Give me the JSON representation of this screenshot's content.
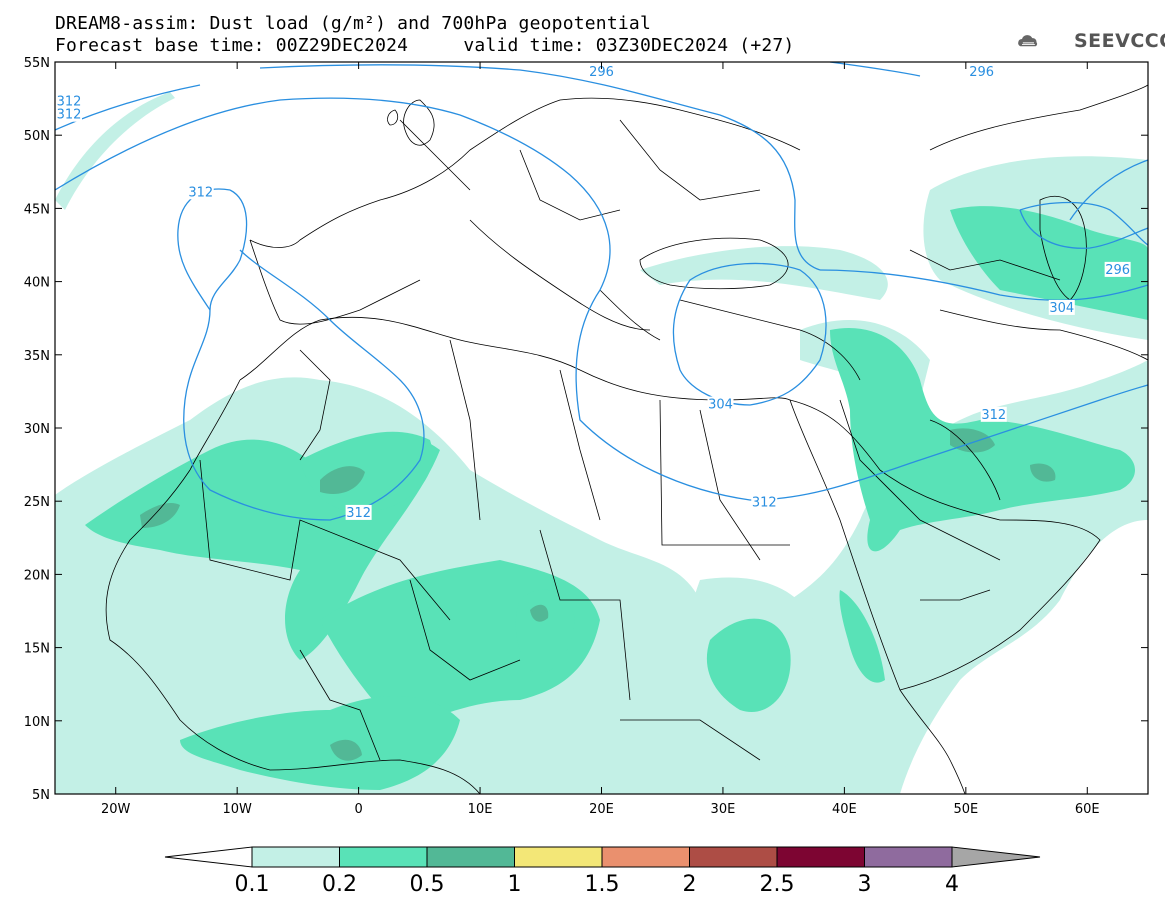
{
  "title": {
    "line1": "DREAM8-assim: Dust load (g/m²) and 700hPa geopotential",
    "line2": "Forecast base time: 00Z29DEC2024     valid time: 03Z30DEC2024 (+27)"
  },
  "logo": {
    "text": "SEEVCCC",
    "icon": "cloud-logo-icon"
  },
  "map": {
    "lon_range": [
      -25,
      65
    ],
    "lat_range": [
      5,
      55
    ],
    "lon_ticks": [
      {
        "v": -20,
        "label": "20W"
      },
      {
        "v": -10,
        "label": "10W"
      },
      {
        "v": 0,
        "label": "0"
      },
      {
        "v": 10,
        "label": "10E"
      },
      {
        "v": 20,
        "label": "20E"
      },
      {
        "v": 30,
        "label": "30E"
      },
      {
        "v": 40,
        "label": "40E"
      },
      {
        "v": 50,
        "label": "50E"
      },
      {
        "v": 60,
        "label": "60E"
      }
    ],
    "lat_ticks": [
      {
        "v": 55,
        "label": "55N"
      },
      {
        "v": 50,
        "label": "50N"
      },
      {
        "v": 45,
        "label": "45N"
      },
      {
        "v": 40,
        "label": "40N"
      },
      {
        "v": 35,
        "label": "35N"
      },
      {
        "v": 30,
        "label": "30N"
      },
      {
        "v": 25,
        "label": "25N"
      },
      {
        "v": 20,
        "label": "20N"
      },
      {
        "v": 15,
        "label": "15N"
      },
      {
        "v": 10,
        "label": "10N"
      },
      {
        "v": 5,
        "label": "5N"
      }
    ],
    "contour_color": "#2a8fe0",
    "contour_labels": [
      {
        "text": "312",
        "lon": -25,
        "lat": 51.4
      },
      {
        "text": "312",
        "lon": -13,
        "lat": 46.1
      },
      {
        "text": "312",
        "lon": -25,
        "lat": 52.3
      },
      {
        "text": "312",
        "lon": 0.0,
        "lat": 24.2
      },
      {
        "text": "312",
        "lon": 33.4,
        "lat": 24.9
      },
      {
        "text": "312",
        "lon": 52.3,
        "lat": 30.9
      },
      {
        "text": "304",
        "lon": 29.8,
        "lat": 31.6
      },
      {
        "text": "304",
        "lon": 57.9,
        "lat": 38.2
      },
      {
        "text": "296",
        "lon": 62.5,
        "lat": 40.8
      },
      {
        "text": "296",
        "lon": 51.3,
        "lat": 55.0
      },
      {
        "text": "296",
        "lon": 20.0,
        "lat": 55.0
      }
    ]
  },
  "colorbar": {
    "ticks": [
      "0.1",
      "0.2",
      "0.5",
      "1",
      "1.5",
      "2",
      "2.5",
      "3",
      "4"
    ],
    "colors": [
      "#c3f0e6",
      "#59e2b7",
      "#52b896",
      "#f3e777",
      "#ea906e",
      "#ad4d45",
      "#7d0532",
      "#8f6b9e"
    ],
    "over_color": "#a6a6a6",
    "under_color": "#ffffff"
  }
}
